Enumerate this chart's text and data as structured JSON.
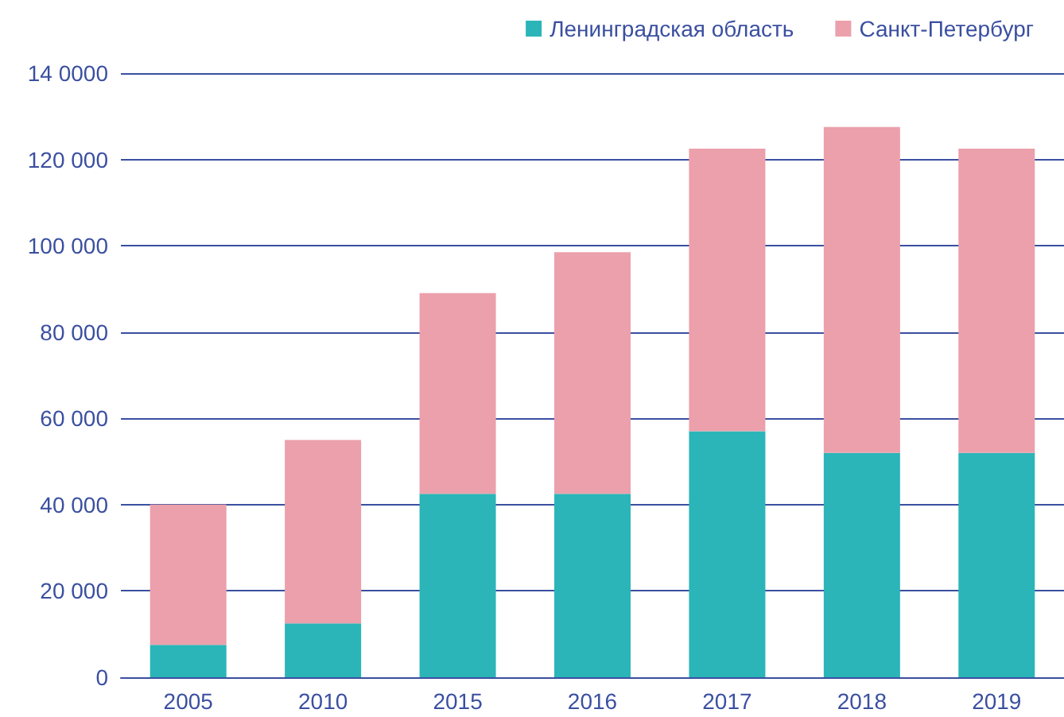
{
  "chart_data": {
    "type": "bar",
    "stacked": true,
    "categories": [
      "2005",
      "2010",
      "2015",
      "2016",
      "2017",
      "2018",
      "2019"
    ],
    "series": [
      {
        "name": "Ленинградская область",
        "color": "#2bb5b8",
        "values": [
          7500,
          12500,
          42500,
          42500,
          57000,
          52000,
          52000
        ]
      },
      {
        "name": "Санкт-Петербург",
        "color": "#eba0ab",
        "values": [
          32500,
          42500,
          46500,
          56000,
          65500,
          75500,
          70500
        ]
      }
    ],
    "ylim": [
      0,
      140000
    ],
    "yticks": [
      0,
      {
        "value": 20000,
        "label": "20 000"
      },
      {
        "value": 40000,
        "label": "40 000"
      },
      {
        "value": 60000,
        "label": "60 000"
      },
      {
        "value": 80000,
        "label": "80 000"
      },
      {
        "value": 100000,
        "label": "100 000"
      },
      {
        "value": 120000,
        "label": "120 000"
      },
      {
        "value": 140000,
        "label": "14 0000"
      }
    ],
    "grid": "y",
    "legend": "top right"
  }
}
